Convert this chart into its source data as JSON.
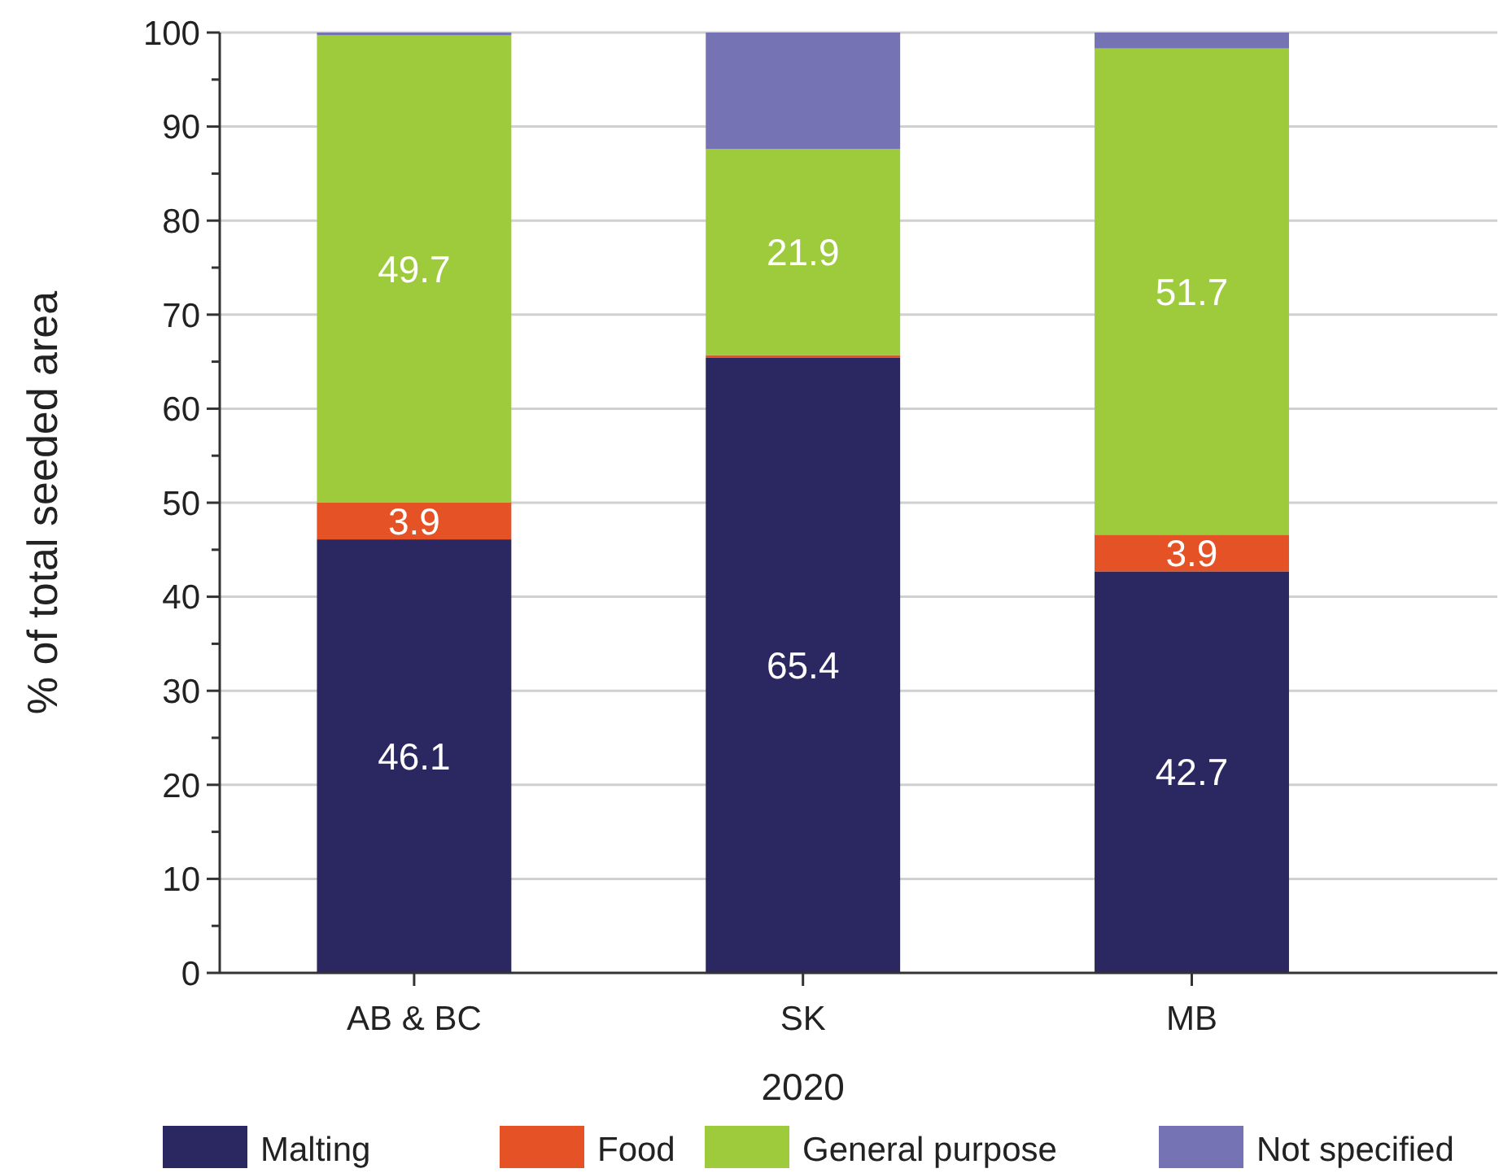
{
  "chart_data": {
    "type": "bar",
    "stacked": true,
    "xlabel": "2020",
    "ylabel": "% of total seeded area",
    "categories": [
      "AB & BC",
      "SK",
      "MB"
    ],
    "series": [
      {
        "name": "Malting",
        "color": "#2b2760",
        "values": [
          46.1,
          65.4,
          42.7
        ],
        "value_labels": [
          "46.1",
          "65.4",
          "42.7"
        ]
      },
      {
        "name": "Food",
        "color": "#e45226",
        "values": [
          3.9,
          0.3,
          3.9
        ],
        "value_labels": [
          "3.9",
          null,
          "3.9"
        ]
      },
      {
        "name": "General purpose",
        "color": "#9dcb3c",
        "values": [
          49.7,
          21.9,
          51.7
        ],
        "value_labels": [
          "49.7",
          "21.9",
          "51.7"
        ]
      },
      {
        "name": "Not specified",
        "color": "#7673b5",
        "values": [
          0.3,
          12.4,
          1.7
        ]
      }
    ],
    "ylim": [
      0,
      100
    ],
    "yticks": [
      0,
      {
        "value": 5,
        "label": null
      },
      10,
      {
        "value": 15,
        "label": null
      },
      20,
      {
        "value": 25,
        "label": null
      },
      30,
      {
        "value": 35,
        "label": null
      },
      40,
      {
        "value": 45,
        "label": null
      },
      50,
      {
        "value": 55,
        "label": null
      },
      60,
      {
        "value": 65,
        "label": null
      },
      70,
      {
        "value": 75,
        "label": null
      },
      80,
      {
        "value": 85,
        "label": null
      },
      90,
      {
        "value": 95,
        "label": null
      },
      100
    ],
    "grid": "y",
    "legend": "bottom"
  }
}
